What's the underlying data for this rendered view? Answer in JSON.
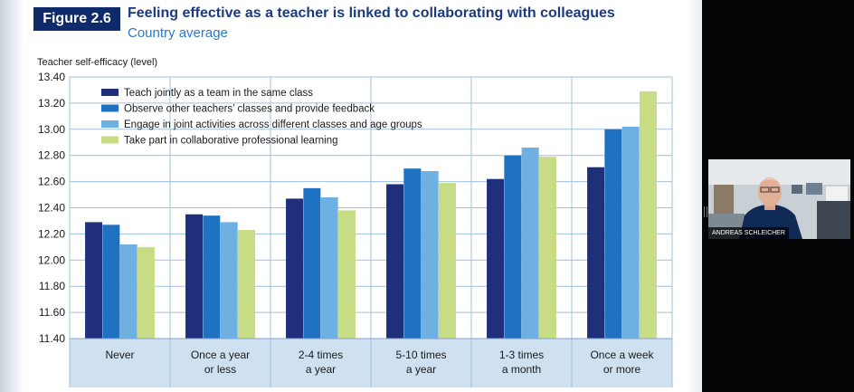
{
  "figure": {
    "label": "Figure 2.6",
    "title": "Feeling effective as a teacher is linked to collaborating with colleagues",
    "subtitle": "Country average",
    "y_axis_title": "Teacher self-efficacy (level)"
  },
  "colors": {
    "series": [
      "#1f2f7a",
      "#1f72c2",
      "#6fb0e2",
      "#c7dc84"
    ],
    "category_band": "#cfe0f1",
    "grid": "#9fc0df"
  },
  "chart_data": {
    "type": "bar",
    "categories": [
      [
        "Never"
      ],
      [
        "Once a year",
        "or less"
      ],
      [
        "2-4 times",
        "a year"
      ],
      [
        "5-10 times",
        "a year"
      ],
      [
        "1-3 times",
        "a month"
      ],
      [
        "Once a week",
        "or more"
      ]
    ],
    "series": [
      {
        "name": "Teach jointly as a team in the same class",
        "values": [
          12.29,
          12.35,
          12.47,
          12.58,
          12.62,
          12.71
        ]
      },
      {
        "name": "Observe other teachers’ classes and provide feedback",
        "values": [
          12.27,
          12.34,
          12.55,
          12.7,
          12.8,
          13.0
        ]
      },
      {
        "name": "Engage in joint activities across different classes and age groups",
        "values": [
          12.12,
          12.29,
          12.48,
          12.68,
          12.86,
          13.02
        ]
      },
      {
        "name": "Take part in collaborative professional learning",
        "values": [
          12.1,
          12.23,
          12.38,
          12.59,
          12.79,
          13.29
        ]
      }
    ],
    "yticks": [
      "13.40",
      "13.20",
      "13.00",
      "12.80",
      "12.60",
      "12.40",
      "12.20",
      "12.00",
      "11.80",
      "11.60",
      "11.40"
    ],
    "ylim": [
      11.4,
      13.4
    ],
    "legend_position": "top-left",
    "grid": true
  },
  "video_tile": {
    "participant_name": "ANDREAS SCHLEICHER"
  }
}
